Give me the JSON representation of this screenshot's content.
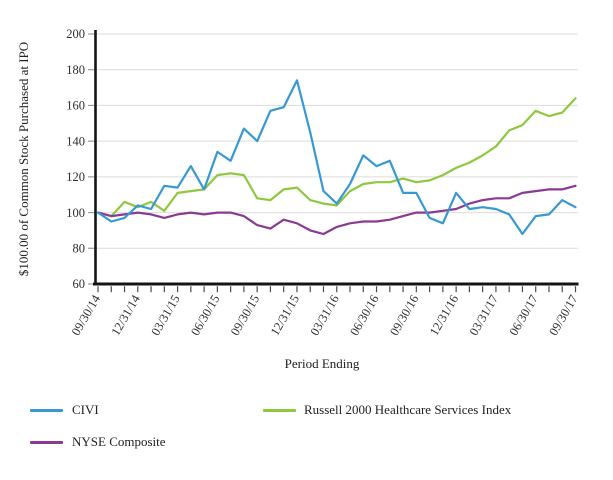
{
  "chart_data": {
    "type": "line",
    "title": "",
    "ylabel": "$100.00 of Common Stock Purchased at IPO",
    "xlabel": "Period Ending",
    "ylim": [
      60,
      200
    ],
    "y_ticks": [
      60,
      80,
      100,
      120,
      140,
      160,
      180,
      200
    ],
    "grid": "horizontal",
    "legend_position": "bottom",
    "x_tick_label_every": 3,
    "x_tick_labels_visible": [
      "09/30/14",
      "12/31/14",
      "03/31/15",
      "06/30/15",
      "09/30/15",
      "12/31/15",
      "03/31/16",
      "06/30/16",
      "09/30/16",
      "12/31/16",
      "03/31/17",
      "06/30/17",
      "09/30/17"
    ],
    "x": [
      "09/30/14",
      "10/31/14",
      "11/30/14",
      "12/31/14",
      "01/31/15",
      "02/28/15",
      "03/31/15",
      "04/30/15",
      "05/31/15",
      "06/30/15",
      "07/31/15",
      "08/31/15",
      "09/30/15",
      "10/31/15",
      "11/30/15",
      "12/31/15",
      "01/31/16",
      "02/29/16",
      "03/31/16",
      "04/30/16",
      "05/31/16",
      "06/30/16",
      "07/31/16",
      "08/31/16",
      "09/30/16",
      "10/31/16",
      "11/30/16",
      "12/31/16",
      "01/31/17",
      "02/28/17",
      "03/31/17",
      "04/30/17",
      "05/31/17",
      "06/30/17",
      "07/31/17",
      "08/31/17",
      "09/30/17"
    ],
    "series": [
      {
        "name": "CIVI",
        "color": "#3899D2",
        "values": [
          100,
          95,
          97,
          104,
          102,
          115,
          114,
          126,
          113,
          134,
          129,
          147,
          140,
          157,
          159,
          174,
          145,
          112,
          105,
          116,
          132,
          126,
          129,
          111,
          111,
          97,
          94,
          111,
          102,
          103,
          102,
          99,
          88,
          98,
          99,
          107,
          103
        ]
      },
      {
        "name": "Russell 2000 Healthcare Services Index",
        "color": "#8FC73E",
        "values": [
          100,
          98,
          106,
          103,
          106,
          101,
          111,
          112,
          113,
          121,
          122,
          121,
          108,
          107,
          113,
          114,
          107,
          105,
          104,
          112,
          116,
          117,
          117,
          119,
          117,
          118,
          121,
          125,
          128,
          132,
          137,
          146,
          149,
          157,
          154,
          156,
          164
        ]
      },
      {
        "name": "NYSE Composite",
        "color": "#8A3A92",
        "values": [
          100,
          98,
          99,
          100,
          99,
          97,
          99,
          100,
          99,
          100,
          100,
          98,
          93,
          91,
          96,
          94,
          90,
          88,
          92,
          94,
          95,
          95,
          96,
          98,
          100,
          100,
          101,
          102,
          105,
          107,
          108,
          108,
          111,
          112,
          113,
          113,
          115
        ]
      }
    ]
  },
  "legend": {
    "items": [
      {
        "id": "civi",
        "label": "CIVI"
      },
      {
        "id": "russell",
        "label": "Russell 2000 Healthcare Services Index"
      },
      {
        "id": "nyse",
        "label": "NYSE Composite"
      }
    ]
  }
}
